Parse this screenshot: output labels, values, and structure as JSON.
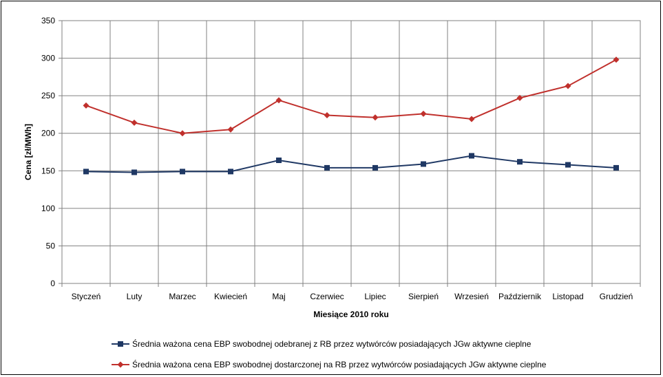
{
  "chart_data": {
    "type": "line",
    "title": "",
    "xlabel": "Miesiące 2010  roku",
    "ylabel": "Cena [zł/MWh]",
    "ylim": [
      0,
      350
    ],
    "yticks": [
      "0",
      "50",
      "100",
      "150",
      "200",
      "250",
      "300",
      "350"
    ],
    "grid": true,
    "legend_position": "bottom",
    "categories": [
      "Styczeń",
      "Luty",
      "Marzec",
      "Kwiecień",
      "Maj",
      "Czerwiec",
      "Lipiec",
      "Sierpień",
      "Wrzesień",
      "Październik",
      "Listopad",
      "Grudzień"
    ],
    "series": [
      {
        "name": "Średnia ważona cena EBP swobodnej odebranej z RB przez wytwórców posiadających JGw aktywne cieplne",
        "color": "#1F3864",
        "marker": "square",
        "values": [
          149,
          148,
          149,
          149,
          164,
          154,
          154,
          159,
          170,
          162,
          158,
          154
        ]
      },
      {
        "name": "Średnia ważona cena EBP swobodnej dostarczonej na RB  przez wytwórców posiadających JGw aktywne cieplne",
        "color": "#C0302C",
        "marker": "diamond",
        "values": [
          237,
          214,
          200,
          205,
          244,
          224,
          221,
          226,
          219,
          247,
          263,
          298
        ]
      }
    ]
  }
}
